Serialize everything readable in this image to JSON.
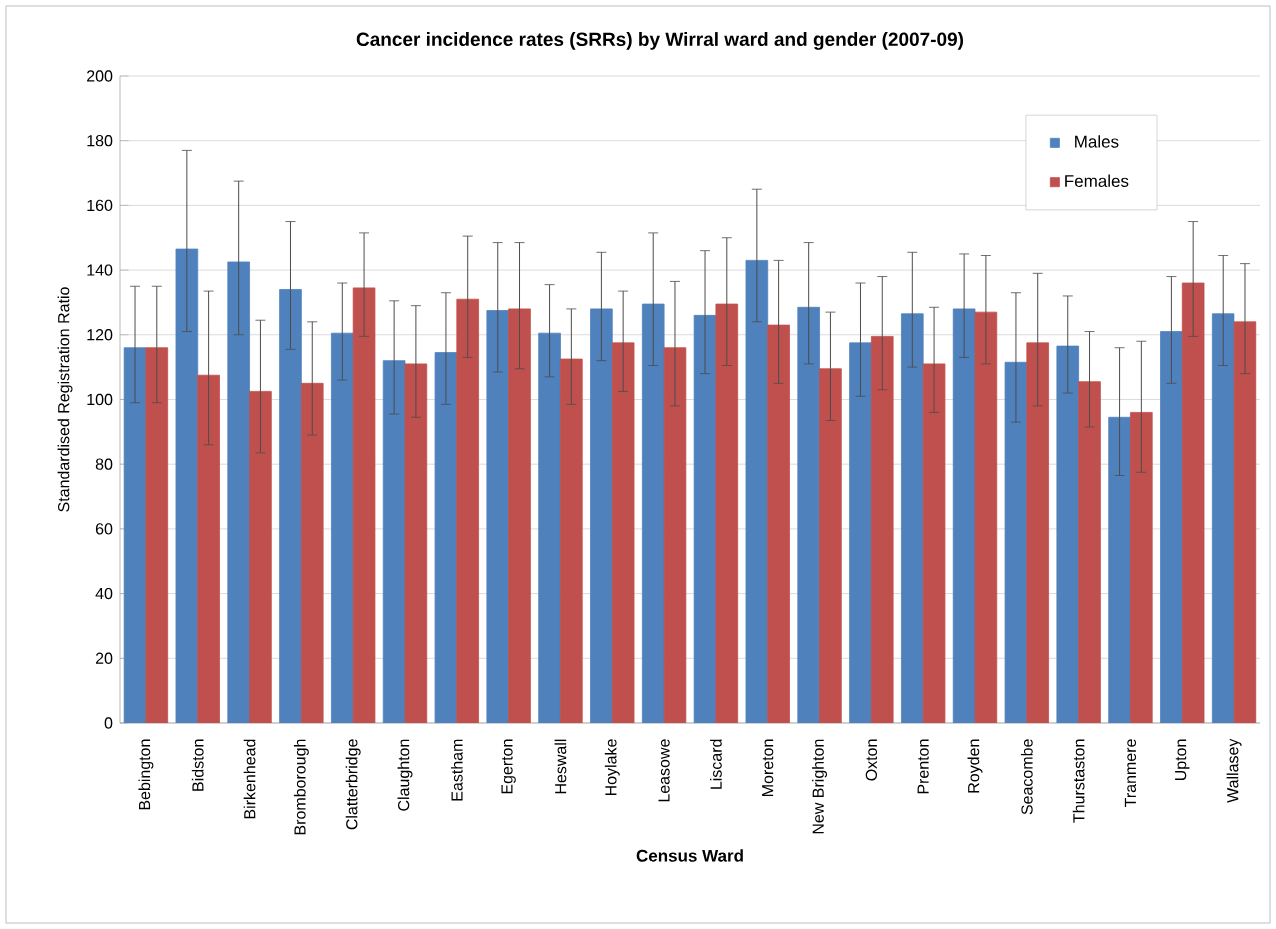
{
  "chart_data": {
    "type": "bar",
    "title": "Cancer incidence rates (SRRs) by Wirral ward and gender (2007-09)",
    "xlabel": "Census Ward",
    "ylabel": "Standardised Registration Ratio",
    "categories": [
      "Bebington",
      "Bidston",
      "Birkenhead",
      "Bromborough",
      "Clatterbridge",
      "Claughton",
      "Eastham",
      "Egerton",
      "Heswall",
      "Hoylake",
      "Leasowe",
      "Liscard",
      "Moreton",
      "New Brighton",
      "Oxton",
      "Prenton",
      "Royden",
      "Seacombe",
      "Thurstaston",
      "Tranmere",
      "Upton",
      "Wallasey"
    ],
    "series": [
      {
        "name": "Males",
        "color": "#4f81bd",
        "values": [
          116,
          146.5,
          142.5,
          134,
          120.5,
          112,
          114.5,
          127.5,
          120.5,
          128,
          129.5,
          126,
          143,
          128.5,
          117.5,
          126.5,
          128,
          111.5,
          116.5,
          94.5,
          121,
          126.5
        ],
        "errors": [
          [
            99,
            135
          ],
          [
            121,
            177
          ],
          [
            120,
            167.5
          ],
          [
            115.5,
            155
          ],
          [
            106,
            136
          ],
          [
            95.5,
            130.5
          ],
          [
            98.5,
            133
          ],
          [
            108.5,
            148.5
          ],
          [
            107,
            135.5
          ],
          [
            112,
            145.5
          ],
          [
            110.5,
            151.5
          ],
          [
            108,
            146
          ],
          [
            124,
            165
          ],
          [
            111,
            148.5
          ],
          [
            101,
            136
          ],
          [
            110,
            145.5
          ],
          [
            113,
            145
          ],
          [
            93,
            133
          ],
          [
            102,
            132
          ],
          [
            76.5,
            116
          ],
          [
            105,
            138
          ],
          [
            110.5,
            144.5
          ]
        ]
      },
      {
        "name": "Females",
        "color": "#c0504d",
        "values": [
          116,
          107.5,
          102.5,
          105,
          134.5,
          111,
          131,
          128,
          112.5,
          117.5,
          116,
          129.5,
          123,
          109.5,
          119.5,
          111,
          127,
          117.5,
          105.5,
          96,
          136,
          124
        ],
        "errors": [
          [
            99,
            135
          ],
          [
            86,
            133.5
          ],
          [
            83.5,
            124.5
          ],
          [
            89,
            124
          ],
          [
            119.5,
            151.5
          ],
          [
            94.5,
            129
          ],
          [
            113,
            150.5
          ],
          [
            109.5,
            148.5
          ],
          [
            98.5,
            128
          ],
          [
            102.5,
            133.5
          ],
          [
            98,
            136.5
          ],
          [
            110.5,
            150
          ],
          [
            105,
            143
          ],
          [
            93.5,
            127
          ],
          [
            103,
            138
          ],
          [
            96,
            128.5
          ],
          [
            111,
            144.5
          ],
          [
            98,
            139
          ],
          [
            91.5,
            121
          ],
          [
            77.5,
            118
          ],
          [
            119.5,
            155
          ],
          [
            108,
            142
          ]
        ]
      }
    ],
    "ylim": [
      0,
      200
    ],
    "yticks": [
      0,
      20,
      40,
      60,
      80,
      100,
      120,
      140,
      160,
      180,
      200
    ],
    "grid": "y",
    "legend": "top right"
  }
}
